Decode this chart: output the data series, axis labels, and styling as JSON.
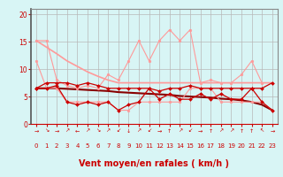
{
  "x": [
    0,
    1,
    2,
    3,
    4,
    5,
    6,
    7,
    8,
    9,
    10,
    11,
    12,
    13,
    14,
    15,
    16,
    17,
    18,
    19,
    20,
    21,
    22,
    23
  ],
  "series": [
    {
      "name": "rafales_light",
      "color": "#ff9999",
      "marker": "o",
      "markersize": 2.0,
      "linewidth": 0.8,
      "y": [
        15.2,
        15.2,
        8.0,
        7.0,
        6.5,
        7.0,
        6.5,
        9.0,
        8.0,
        11.5,
        15.2,
        11.5,
        15.2,
        17.2,
        15.2,
        17.2,
        7.5,
        8.0,
        7.5,
        7.5,
        9.0,
        11.5,
        7.5,
        7.5
      ]
    },
    {
      "name": "moyen_light",
      "color": "#ff9999",
      "marker": "o",
      "markersize": 2.0,
      "linewidth": 0.8,
      "y": [
        11.5,
        6.5,
        6.5,
        4.0,
        4.0,
        4.0,
        4.0,
        4.0,
        2.5,
        2.5,
        4.0,
        4.0,
        4.0,
        4.0,
        4.0,
        6.5,
        6.5,
        6.5,
        4.0,
        4.0,
        4.0,
        4.0,
        4.0,
        2.5
      ]
    },
    {
      "name": "rafales_dark",
      "color": "#cc0000",
      "marker": "D",
      "markersize": 2.0,
      "linewidth": 0.9,
      "y": [
        6.5,
        7.5,
        7.5,
        7.5,
        7.0,
        7.5,
        7.0,
        6.5,
        6.5,
        6.5,
        6.5,
        6.5,
        6.0,
        6.5,
        6.5,
        7.0,
        6.5,
        6.5,
        6.5,
        6.5,
        6.5,
        6.5,
        6.5,
        7.5
      ]
    },
    {
      "name": "moyen_dark",
      "color": "#cc0000",
      "marker": "D",
      "markersize": 2.0,
      "linewidth": 0.9,
      "y": [
        6.5,
        6.5,
        7.0,
        4.0,
        3.5,
        4.0,
        3.5,
        4.0,
        2.5,
        3.5,
        4.0,
        6.5,
        4.5,
        5.5,
        4.5,
        4.5,
        5.5,
        4.5,
        5.5,
        4.5,
        4.5,
        6.5,
        4.0,
        2.5
      ]
    },
    {
      "name": "trend_dark",
      "color": "#880000",
      "marker": null,
      "markersize": 0,
      "linewidth": 1.5,
      "y": [
        6.5,
        6.5,
        6.5,
        6.4,
        6.3,
        6.2,
        6.1,
        6.0,
        5.8,
        5.7,
        5.6,
        5.5,
        5.4,
        5.3,
        5.1,
        5.0,
        4.9,
        4.8,
        4.6,
        4.5,
        4.3,
        4.0,
        3.5,
        2.5
      ]
    },
    {
      "name": "trend_light",
      "color": "#ff9999",
      "marker": null,
      "markersize": 0,
      "linewidth": 1.2,
      "y": [
        15.2,
        14.0,
        12.8,
        11.5,
        10.5,
        9.5,
        8.7,
        8.0,
        7.5,
        7.5,
        7.5,
        7.5,
        7.5,
        7.5,
        7.5,
        7.5,
        7.5,
        7.5,
        7.5,
        7.5,
        7.5,
        7.5,
        7.5,
        7.5
      ]
    }
  ],
  "arrows": [
    "→",
    "↘",
    "→",
    "↗",
    "←",
    "↗",
    "↘",
    "↗",
    "↙",
    "↓",
    "↗",
    "↙",
    "→",
    "↑",
    "↗",
    "↙",
    "→",
    "↑",
    "↗",
    "↗",
    "↑",
    "↑",
    "↖",
    "→"
  ],
  "xlabel": "Vent moyen/en rafales ( km/h )",
  "xlim": [
    -0.5,
    23.5
  ],
  "ylim": [
    0,
    21
  ],
  "yticks": [
    0,
    5,
    10,
    15,
    20
  ],
  "xticks": [
    0,
    1,
    2,
    3,
    4,
    5,
    6,
    7,
    8,
    9,
    10,
    11,
    12,
    13,
    14,
    15,
    16,
    17,
    18,
    19,
    20,
    21,
    22,
    23
  ],
  "bg_color": "#d8f5f5",
  "grid_color": "#b8b8b8",
  "xlabel_color": "#cc0000",
  "tick_color": "#cc0000",
  "spine_color": "#888888"
}
